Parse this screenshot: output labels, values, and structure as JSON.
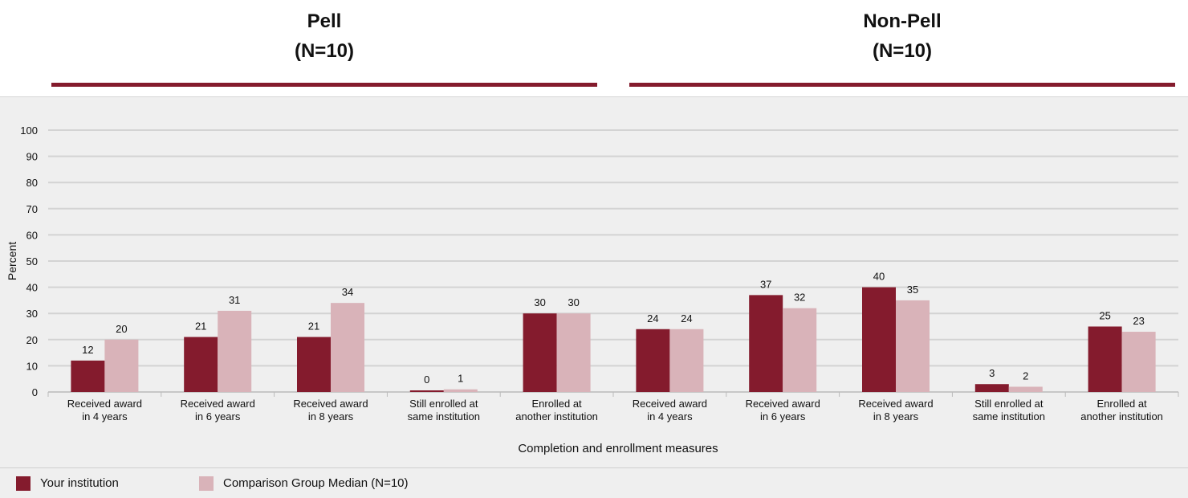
{
  "colors": {
    "your_institution": "#841b2d",
    "comparison": "#d9b3b9",
    "rule": "#841b2d",
    "grid": "#d3d3d3",
    "panel": "#efefef"
  },
  "groups": [
    {
      "title": "Pell",
      "subtitle": "(N=10)"
    },
    {
      "title": "Non-Pell",
      "subtitle": "(N=10)"
    }
  ],
  "legend": {
    "your_institution": "Your institution",
    "comparison": "Comparison Group Median (N=10)"
  },
  "chart_data": {
    "type": "bar",
    "xlabel": "Completion and enrollment measures",
    "ylabel": "Percent",
    "ylim": [
      0,
      100
    ],
    "yticks": [
      0,
      10,
      20,
      30,
      40,
      50,
      60,
      70,
      80,
      90,
      100
    ],
    "grid": true,
    "categories": [
      [
        "Received award",
        "in 4 years"
      ],
      [
        "Received award",
        "in 6 years"
      ],
      [
        "Received award",
        "in 8 years"
      ],
      [
        "Still enrolled at",
        "same institution"
      ],
      [
        "Enrolled at",
        "another institution"
      ],
      [
        "Received award",
        "in 4 years"
      ],
      [
        "Received award",
        "in 6 years"
      ],
      [
        "Received award",
        "in 8 years"
      ],
      [
        "Still enrolled at",
        "same institution"
      ],
      [
        "Enrolled at",
        "another institution"
      ]
    ],
    "series": [
      {
        "name": "Your institution",
        "values": [
          12,
          21,
          21,
          0,
          30,
          24,
          37,
          40,
          3,
          25
        ]
      },
      {
        "name": "Comparison Group Median (N=10)",
        "values": [
          20,
          31,
          34,
          1,
          30,
          24,
          32,
          35,
          2,
          23
        ]
      }
    ]
  }
}
